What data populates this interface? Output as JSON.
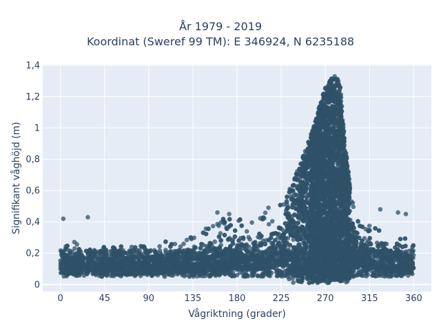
{
  "chart_data": {
    "type": "scatter",
    "title": "År 1979 - 2019",
    "subtitle": "Koordinat (Sweref 99 TM): E 346924, N 6235188",
    "xlabel": "Vågriktning (grader)",
    "ylabel": "Signifikant våghöjd (m)",
    "xlim": [
      -18,
      378
    ],
    "ylim": [
      -0.045,
      1.405
    ],
    "xticks": [
      0,
      45,
      90,
      135,
      180,
      225,
      270,
      315,
      360
    ],
    "yticks": [
      {
        "value": 0,
        "label": "0"
      },
      {
        "value": 0.2,
        "label": "0,2"
      },
      {
        "value": 0.4,
        "label": "0,4"
      },
      {
        "value": 0.6,
        "label": "0,6"
      },
      {
        "value": 0.8,
        "label": "0,8"
      },
      {
        "value": 1.0,
        "label": "1"
      },
      {
        "value": 1.2,
        "label": "1,2"
      },
      {
        "value": 1.4,
        "label": "1,4"
      }
    ],
    "grid": true,
    "legend": "none",
    "marker_color": "#2f5168",
    "plot_bg": "#e5ecf6",
    "envelope": {
      "direction_deg": [
        0,
        10,
        20,
        30,
        45,
        60,
        75,
        90,
        105,
        120,
        135,
        150,
        165,
        180,
        190,
        200,
        210,
        220,
        230,
        240,
        250,
        255,
        260,
        265,
        270,
        275,
        280,
        285,
        290,
        295,
        300,
        310,
        320,
        330,
        340,
        350,
        360
      ],
      "max_height_m": [
        0.25,
        0.27,
        0.28,
        0.27,
        0.24,
        0.25,
        0.25,
        0.26,
        0.27,
        0.29,
        0.33,
        0.38,
        0.42,
        0.44,
        0.45,
        0.47,
        0.48,
        0.51,
        0.58,
        0.7,
        0.87,
        0.96,
        1.05,
        1.16,
        1.26,
        1.31,
        1.34,
        1.28,
        0.9,
        0.65,
        0.5,
        0.45,
        0.42,
        0.38,
        0.35,
        0.3,
        0.25
      ],
      "min_height_m": [
        0.03,
        0.02,
        0.02,
        0.02,
        0.02,
        0.02,
        0.02,
        0.02,
        0.02,
        0.02,
        0.02,
        0.01,
        0.01,
        0.01,
        0.01,
        0.01,
        0.01,
        0.01,
        0.01,
        0.01,
        0.01,
        0.01,
        0.01,
        0.01,
        0.01,
        0.01,
        0.01,
        0.01,
        0.01,
        0.01,
        0.01,
        0.02,
        0.02,
        0.02,
        0.02,
        0.02,
        0.03
      ]
    },
    "outliers": [
      {
        "x": 3,
        "y": 0.42
      },
      {
        "x": 28,
        "y": 0.43
      },
      {
        "x": 160,
        "y": 0.46
      },
      {
        "x": 172,
        "y": 0.45
      },
      {
        "x": 212,
        "y": 0.49
      },
      {
        "x": 326,
        "y": 0.48
      },
      {
        "x": 344,
        "y": 0.46
      },
      {
        "x": 352,
        "y": 0.45
      }
    ]
  }
}
